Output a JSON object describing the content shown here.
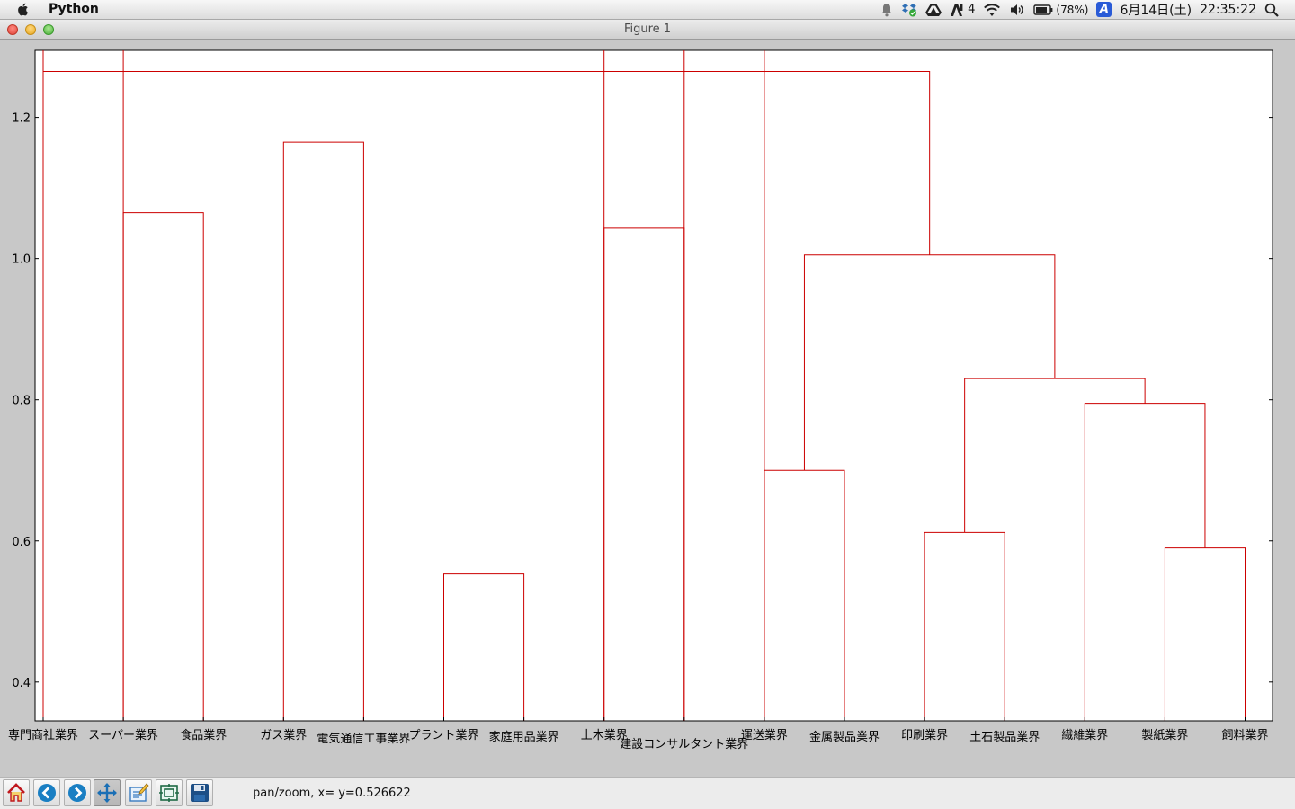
{
  "menubar": {
    "app_name": "Python",
    "extras_count": "4",
    "battery": "(78%)",
    "input_method": "A",
    "date": "6月14日(土)",
    "time": "22:35:22",
    "icons": [
      "apple-icon",
      "notification-icon",
      "dropbox-icon",
      "drive-icon",
      "adobe-icon",
      "wifi-icon",
      "volume-icon",
      "battery-icon",
      "input-method-icon",
      "spotlight-search-icon"
    ]
  },
  "window": {
    "title": "Figure 1",
    "buttons": [
      "close",
      "minimize",
      "zoom"
    ]
  },
  "toolbar": {
    "buttons": [
      "home-icon",
      "back-icon",
      "forward-icon",
      "pan-icon",
      "configure-subplots-icon",
      "zoom-rect-icon",
      "save-icon"
    ],
    "active": "pan-icon",
    "status": "pan/zoom, x= y=0.526622"
  },
  "chart_data": {
    "type": "dendrogram",
    "title": "",
    "xlabel": "",
    "ylabel": "",
    "ylim": [
      0.345,
      1.295
    ],
    "yticks": [
      0.4,
      0.6,
      0.8,
      1.0,
      1.2
    ],
    "line_color": "#cc0000",
    "leaves": [
      "専門商社業界",
      "スーパー業界",
      "食品業界",
      "ガス業界",
      "電気通信工事業界",
      "プラント業界",
      "家庭用品業界",
      "土木業界",
      "建設コンサルタント業界",
      "運送業界",
      "金属製品業界",
      "印刷業界",
      "土石製品業界",
      "繊維業界",
      "製紙業界",
      "飼料業界"
    ],
    "merges": [
      {
        "left": 14,
        "right": 15,
        "height": 0.59
      },
      {
        "left": 5,
        "right": 6,
        "height": 0.553
      },
      {
        "left": 11,
        "right": 12,
        "height": 0.612
      },
      {
        "left": 9,
        "right": 10,
        "height": 0.7
      },
      {
        "left": 13,
        "right": 16,
        "height": 0.795
      },
      {
        "left": 18,
        "right": 20,
        "height": 0.83
      },
      {
        "left": 19,
        "right": 21,
        "height": 1.005
      },
      {
        "left": 7,
        "right": 8,
        "height": 1.043
      },
      {
        "left": 1,
        "right": 2,
        "height": 1.065
      },
      {
        "left": 3,
        "right": 4,
        "height": 1.165
      },
      {
        "left": 22,
        "right": 0,
        "height": 1.265
      }
    ],
    "upper_open_links": [
      0,
      8,
      9,
      1,
      7
    ]
  }
}
